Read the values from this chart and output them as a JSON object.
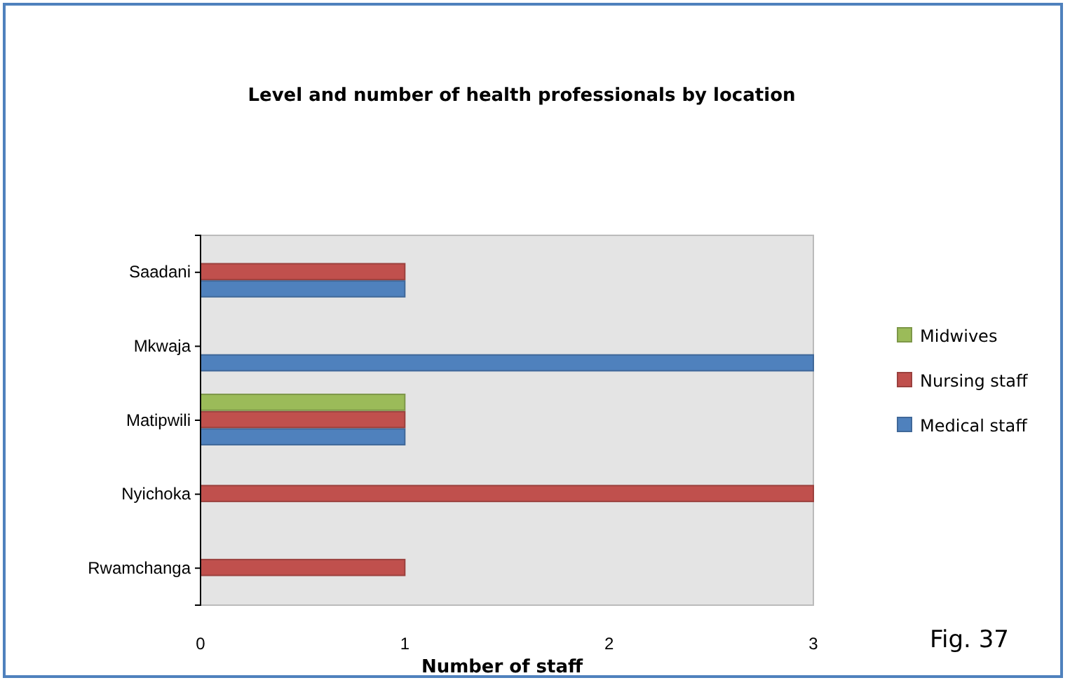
{
  "chart_data": {
    "type": "bar",
    "orientation": "horizontal",
    "title": "Level and number of health professionals by location",
    "xlabel": "Number of staff",
    "categories": [
      "Saadani",
      "Mkwaja",
      "Matipwili",
      "Nyichoka",
      "Rwamchanga"
    ],
    "series": [
      {
        "name": "Medical staff",
        "color": "#4f81bd",
        "values": [
          1,
          3,
          1,
          0,
          0
        ]
      },
      {
        "name": "Nursing staff",
        "color": "#c0504d",
        "values": [
          1,
          0,
          1,
          3,
          1
        ]
      },
      {
        "name": "Midwives",
        "color": "#9bbb59",
        "values": [
          0,
          0,
          1,
          0,
          0
        ]
      }
    ],
    "xlim": [
      0,
      3
    ],
    "xticks": [
      0,
      1,
      2,
      3
    ],
    "legend": "right",
    "grid": false,
    "annotations": [
      "Fig. 37"
    ]
  }
}
